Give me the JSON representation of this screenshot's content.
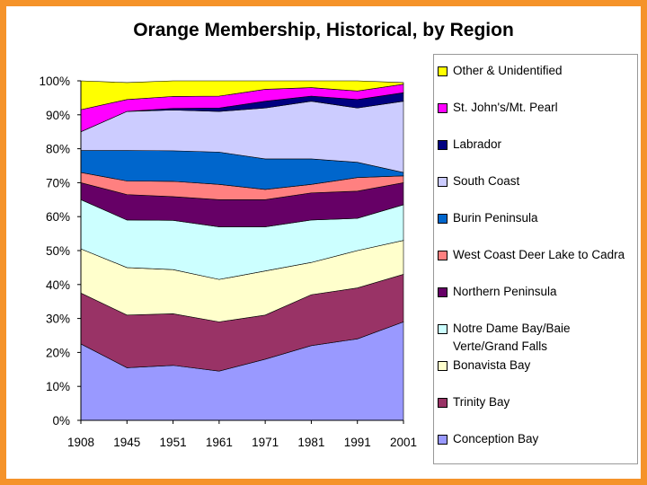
{
  "chart_data": {
    "type": "area",
    "stacked": true,
    "percent": true,
    "title": "Orange Membership, Historical, by Region",
    "categories": [
      "1908",
      "1945",
      "1951",
      "1961",
      "1971",
      "1981",
      "1991",
      "2001"
    ],
    "ylim": [
      0,
      100
    ],
    "yticks": [
      "0%",
      "10%",
      "20%",
      "30%",
      "40%",
      "50%",
      "60%",
      "70%",
      "80%",
      "90%",
      "100%"
    ],
    "grid": false,
    "legend_position": "right",
    "series": [
      {
        "name": "Conception Bay",
        "color": "#9999ff",
        "values": [
          22.5,
          15.5,
          16.2,
          14.5,
          18,
          22,
          24,
          29
        ]
      },
      {
        "name": "Trinity Bay",
        "color": "#993366",
        "values": [
          15,
          15.5,
          15.2,
          14.5,
          13,
          15,
          15,
          14
        ]
      },
      {
        "name": "Bonavista Bay",
        "color": "#ffffcc",
        "values": [
          13,
          14,
          13,
          12.5,
          13,
          9.5,
          11,
          10
        ]
      },
      {
        "name": "Notre Dame Bay/Baie Verte/Grand Falls",
        "color": "#ccffff",
        "values": [
          14.5,
          14,
          14.5,
          15.5,
          13,
          12.5,
          9.5,
          10.5
        ]
      },
      {
        "name": "Northern Peninsula",
        "color": "#660066",
        "values": [
          5,
          7.5,
          7,
          8,
          8,
          8,
          8,
          6.5
        ]
      },
      {
        "name": "West Coast Deer Lake to Cadra",
        "color": "#ff8080",
        "values": [
          3,
          4,
          4.5,
          4.5,
          3,
          2.5,
          4,
          2
        ]
      },
      {
        "name": "Burin Peninsula",
        "color": "#0066cc",
        "values": [
          6.5,
          9,
          9,
          9.5,
          9,
          7.5,
          4.5,
          1
        ]
      },
      {
        "name": "South Coast",
        "color": "#ccccff",
        "values": [
          5.5,
          11.5,
          12,
          12,
          15,
          17,
          16,
          21
        ]
      },
      {
        "name": "Labrador",
        "color": "#000080",
        "values": [
          0,
          0,
          0.5,
          1,
          2,
          1.5,
          2.5,
          2.5
        ]
      },
      {
        "name": "St. John's/Mt. Pearl",
        "color": "#ff00ff",
        "values": [
          6.5,
          3.5,
          3.5,
          3.5,
          3.5,
          2.5,
          2.5,
          2.5
        ]
      },
      {
        "name": "Other & Unidentified",
        "color": "#ffff00",
        "values": [
          8.5,
          5,
          4.6,
          4.5,
          2.5,
          2,
          3,
          0.5
        ]
      }
    ]
  }
}
